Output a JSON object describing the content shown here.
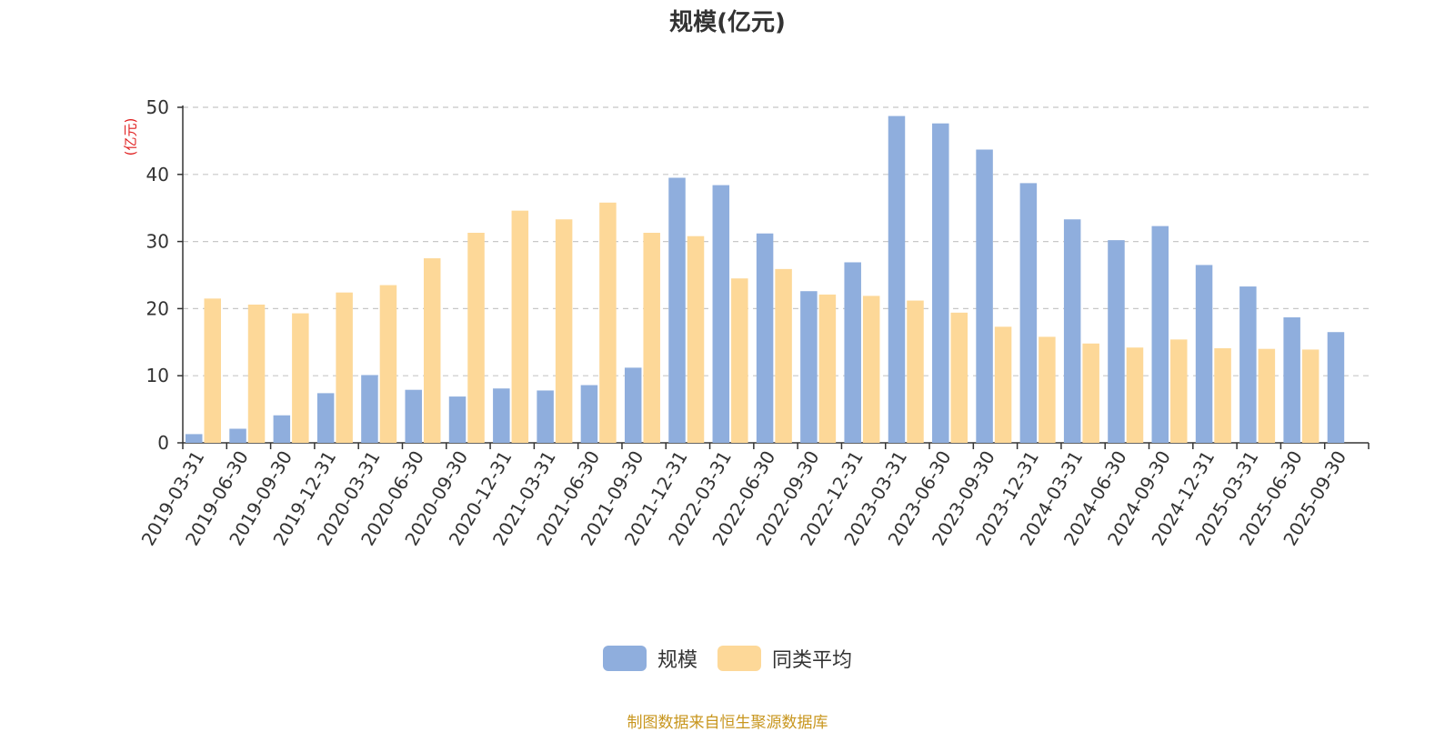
{
  "colors": {
    "series_1": "#8faedd",
    "series_2": "#fdd898",
    "axis": "#333333",
    "grid": "#c8c8c8",
    "unit": "#e02020",
    "source": "#c8961e"
  },
  "chart_data": {
    "type": "bar",
    "title": "规模(亿元)",
    "ylabel": "(亿元)",
    "xlabel": "",
    "ylim": [
      0,
      50
    ],
    "yticks": [
      0,
      10,
      20,
      30,
      40,
      50
    ],
    "grid": true,
    "legend_position": "bottom-center",
    "categories": [
      "2019-03-31",
      "2019-06-30",
      "2019-09-30",
      "2019-12-31",
      "2020-03-31",
      "2020-06-30",
      "2020-09-30",
      "2020-12-31",
      "2021-03-31",
      "2021-06-30",
      "2021-09-30",
      "2021-12-31",
      "2022-03-31",
      "2022-06-30",
      "2022-09-30",
      "2022-12-31",
      "2023-03-31",
      "2023-06-30",
      "2023-09-30",
      "2023-12-31",
      "2024-03-31",
      "2024-06-30",
      "2024-09-30",
      "2024-12-31",
      "2025-03-31",
      "2025-06-30",
      "2025-09-30"
    ],
    "series": [
      {
        "name": "规模",
        "color": "#8faedd",
        "values": [
          1.3,
          2.1,
          4.1,
          7.4,
          10.1,
          7.9,
          6.9,
          8.1,
          7.8,
          8.6,
          11.2,
          39.5,
          38.4,
          31.2,
          22.6,
          26.9,
          48.7,
          47.6,
          43.7,
          38.7,
          33.3,
          30.2,
          32.3,
          26.5,
          23.3,
          18.7,
          16.5
        ]
      },
      {
        "name": "同类平均",
        "color": "#fdd898",
        "values": [
          21.5,
          20.6,
          19.3,
          22.4,
          23.5,
          27.5,
          31.3,
          34.6,
          33.3,
          35.8,
          31.3,
          30.8,
          24.5,
          25.9,
          22.1,
          21.9,
          21.2,
          19.4,
          17.3,
          15.8,
          14.8,
          14.2,
          15.4,
          14.1,
          14.0,
          13.9,
          null
        ]
      }
    ]
  },
  "footer": {
    "source": "制图数据来自恒生聚源数据库"
  }
}
